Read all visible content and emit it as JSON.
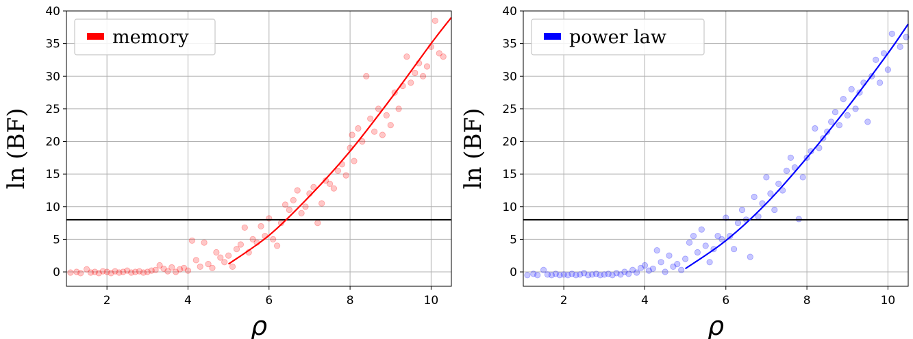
{
  "chart_data": [
    {
      "type": "scatter",
      "xlabel": "ρ",
      "ylabel": "ln (BF)",
      "xlim": [
        1.0,
        10.5
      ],
      "ylim": [
        -2.2,
        40
      ],
      "xticks": [
        2,
        4,
        6,
        8,
        10
      ],
      "yticks": [
        0,
        5,
        10,
        15,
        20,
        25,
        30,
        35,
        40
      ],
      "grid": true,
      "legend_position": "top-left",
      "threshold": 8,
      "threshold_color": "#000000",
      "fit": {
        "name": "memory",
        "x_start": 5.0,
        "x_end": 10.5,
        "points": [
          [
            5.0,
            1.2
          ],
          [
            6.0,
            5.6
          ],
          [
            7.0,
            11.6
          ],
          [
            8.0,
            18.5
          ],
          [
            9.0,
            26.5
          ],
          [
            10.0,
            35.0
          ],
          [
            10.5,
            39.0
          ]
        ]
      },
      "series": [
        {
          "name": "memory",
          "color": "#ff0000",
          "points": [
            [
              1.1,
              -0.1
            ],
            [
              1.25,
              0.0
            ],
            [
              1.35,
              -0.2
            ],
            [
              1.5,
              0.4
            ],
            [
              1.6,
              -0.1
            ],
            [
              1.7,
              0.0
            ],
            [
              1.8,
              -0.2
            ],
            [
              1.9,
              0.1
            ],
            [
              2.0,
              0.0
            ],
            [
              2.1,
              -0.2
            ],
            [
              2.2,
              0.1
            ],
            [
              2.3,
              -0.1
            ],
            [
              2.4,
              0.0
            ],
            [
              2.5,
              0.2
            ],
            [
              2.6,
              -0.1
            ],
            [
              2.7,
              0.0
            ],
            [
              2.8,
              0.1
            ],
            [
              2.9,
              -0.1
            ],
            [
              3.0,
              0.0
            ],
            [
              3.1,
              0.2
            ],
            [
              3.2,
              0.3
            ],
            [
              3.3,
              1.0
            ],
            [
              3.4,
              0.5
            ],
            [
              3.5,
              0.1
            ],
            [
              3.6,
              0.7
            ],
            [
              3.7,
              0.0
            ],
            [
              3.8,
              0.4
            ],
            [
              3.9,
              0.6
            ],
            [
              4.0,
              0.2
            ],
            [
              4.1,
              4.8
            ],
            [
              4.2,
              1.8
            ],
            [
              4.3,
              0.8
            ],
            [
              4.4,
              4.5
            ],
            [
              4.5,
              1.2
            ],
            [
              4.6,
              0.6
            ],
            [
              4.7,
              3.0
            ],
            [
              4.8,
              2.2
            ],
            [
              4.9,
              1.5
            ],
            [
              5.0,
              2.5
            ],
            [
              5.1,
              0.8
            ],
            [
              5.2,
              3.5
            ],
            [
              5.3,
              4.2
            ],
            [
              5.4,
              6.8
            ],
            [
              5.5,
              3.0
            ],
            [
              5.6,
              5.0
            ],
            [
              5.7,
              4.5
            ],
            [
              5.8,
              7.0
            ],
            [
              5.9,
              5.5
            ],
            [
              6.0,
              8.2
            ],
            [
              6.1,
              5.0
            ],
            [
              6.2,
              4.0
            ],
            [
              6.3,
              7.5
            ],
            [
              6.4,
              10.3
            ],
            [
              6.5,
              9.5
            ],
            [
              6.6,
              11.0
            ],
            [
              6.7,
              12.5
            ],
            [
              6.8,
              9.0
            ],
            [
              6.9,
              10.0
            ],
            [
              7.0,
              12.0
            ],
            [
              7.1,
              13.0
            ],
            [
              7.2,
              7.5
            ],
            [
              7.3,
              10.5
            ],
            [
              7.4,
              14.0
            ],
            [
              7.5,
              13.5
            ],
            [
              7.6,
              12.8
            ],
            [
              7.7,
              15.5
            ],
            [
              7.8,
              16.5
            ],
            [
              7.9,
              14.8
            ],
            [
              8.0,
              19.0
            ],
            [
              8.05,
              21.0
            ],
            [
              8.1,
              17.0
            ],
            [
              8.2,
              22.0
            ],
            [
              8.3,
              20.0
            ],
            [
              8.4,
              30.0
            ],
            [
              8.5,
              23.5
            ],
            [
              8.6,
              21.5
            ],
            [
              8.7,
              25.0
            ],
            [
              8.8,
              21.0
            ],
            [
              8.9,
              24.0
            ],
            [
              9.0,
              22.5
            ],
            [
              9.1,
              27.5
            ],
            [
              9.2,
              25.0
            ],
            [
              9.3,
              28.5
            ],
            [
              9.4,
              33.0
            ],
            [
              9.5,
              29.0
            ],
            [
              9.6,
              30.5
            ],
            [
              9.7,
              32.0
            ],
            [
              9.8,
              30.0
            ],
            [
              9.9,
              31.5
            ],
            [
              10.0,
              34.5
            ],
            [
              10.1,
              38.5
            ],
            [
              10.2,
              33.5
            ],
            [
              10.3,
              33.0
            ]
          ]
        }
      ]
    },
    {
      "type": "scatter",
      "xlabel": "ρ",
      "ylabel": "ln (BF)",
      "xlim": [
        1.0,
        10.5
      ],
      "ylim": [
        -2.2,
        40
      ],
      "xticks": [
        2,
        4,
        6,
        8,
        10
      ],
      "yticks": [
        0,
        5,
        10,
        15,
        20,
        25,
        30,
        35,
        40
      ],
      "grid": true,
      "legend_position": "top-left",
      "threshold": 8,
      "threshold_color": "#000000",
      "fit": {
        "name": "power law",
        "x_start": 5.0,
        "x_end": 10.5,
        "points": [
          [
            5.0,
            0.5
          ],
          [
            6.0,
            4.8
          ],
          [
            7.0,
            10.5
          ],
          [
            8.0,
            17.5
          ],
          [
            9.0,
            25.2
          ],
          [
            10.0,
            33.5
          ],
          [
            10.5,
            38.0
          ]
        ]
      },
      "series": [
        {
          "name": "power law",
          "color": "#0000ff",
          "points": [
            [
              1.1,
              -0.5
            ],
            [
              1.25,
              -0.3
            ],
            [
              1.35,
              -0.5
            ],
            [
              1.5,
              0.3
            ],
            [
              1.6,
              -0.4
            ],
            [
              1.7,
              -0.5
            ],
            [
              1.8,
              -0.3
            ],
            [
              1.9,
              -0.5
            ],
            [
              2.0,
              -0.4
            ],
            [
              2.1,
              -0.5
            ],
            [
              2.2,
              -0.3
            ],
            [
              2.3,
              -0.5
            ],
            [
              2.4,
              -0.4
            ],
            [
              2.5,
              -0.2
            ],
            [
              2.6,
              -0.5
            ],
            [
              2.7,
              -0.4
            ],
            [
              2.8,
              -0.3
            ],
            [
              2.9,
              -0.5
            ],
            [
              3.0,
              -0.4
            ],
            [
              3.1,
              -0.3
            ],
            [
              3.2,
              -0.5
            ],
            [
              3.3,
              -0.2
            ],
            [
              3.4,
              -0.4
            ],
            [
              3.5,
              0.0
            ],
            [
              3.6,
              -0.3
            ],
            [
              3.7,
              0.3
            ],
            [
              3.8,
              -0.1
            ],
            [
              3.9,
              0.6
            ],
            [
              4.0,
              1.0
            ],
            [
              4.1,
              0.2
            ],
            [
              4.2,
              0.5
            ],
            [
              4.3,
              3.3
            ],
            [
              4.4,
              1.5
            ],
            [
              4.5,
              0.0
            ],
            [
              4.6,
              2.5
            ],
            [
              4.7,
              0.8
            ],
            [
              4.8,
              1.2
            ],
            [
              4.9,
              0.3
            ],
            [
              5.0,
              2.0
            ],
            [
              5.1,
              4.5
            ],
            [
              5.2,
              5.5
            ],
            [
              5.3,
              3.0
            ],
            [
              5.4,
              6.5
            ],
            [
              5.5,
              4.0
            ],
            [
              5.6,
              1.5
            ],
            [
              5.7,
              3.5
            ],
            [
              5.8,
              5.5
            ],
            [
              5.9,
              5.0
            ],
            [
              6.0,
              8.3
            ],
            [
              6.1,
              5.5
            ],
            [
              6.2,
              3.5
            ],
            [
              6.3,
              7.5
            ],
            [
              6.4,
              9.5
            ],
            [
              6.5,
              8.0
            ],
            [
              6.6,
              2.3
            ],
            [
              6.7,
              11.5
            ],
            [
              6.8,
              8.5
            ],
            [
              6.9,
              10.5
            ],
            [
              7.0,
              14.5
            ],
            [
              7.1,
              12.0
            ],
            [
              7.2,
              9.5
            ],
            [
              7.3,
              13.5
            ],
            [
              7.4,
              12.5
            ],
            [
              7.5,
              15.5
            ],
            [
              7.6,
              17.5
            ],
            [
              7.7,
              16.0
            ],
            [
              7.8,
              8.1
            ],
            [
              7.9,
              14.5
            ],
            [
              8.0,
              17.5
            ],
            [
              8.1,
              18.5
            ],
            [
              8.2,
              22.0
            ],
            [
              8.3,
              19.0
            ],
            [
              8.4,
              20.5
            ],
            [
              8.5,
              21.5
            ],
            [
              8.6,
              23.0
            ],
            [
              8.7,
              24.5
            ],
            [
              8.8,
              22.5
            ],
            [
              8.9,
              26.5
            ],
            [
              9.0,
              24.0
            ],
            [
              9.1,
              28.0
            ],
            [
              9.2,
              25.0
            ],
            [
              9.3,
              27.5
            ],
            [
              9.4,
              29.0
            ],
            [
              9.5,
              23.0
            ],
            [
              9.6,
              30.0
            ],
            [
              9.7,
              32.5
            ],
            [
              9.8,
              29.0
            ],
            [
              9.9,
              33.5
            ],
            [
              10.0,
              31.0
            ],
            [
              10.1,
              36.5
            ],
            [
              10.3,
              34.5
            ],
            [
              10.45,
              36.0
            ]
          ]
        }
      ]
    }
  ]
}
